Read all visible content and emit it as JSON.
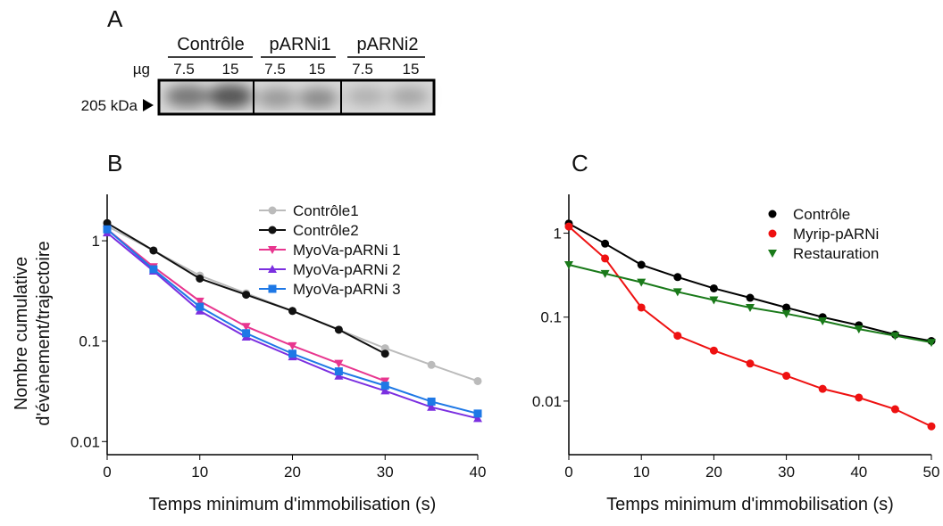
{
  "panel_a": {
    "label": "A",
    "groups": [
      "Contrôle",
      "pARNi1",
      "pARNi2"
    ],
    "unit": "µg",
    "doses": [
      7.5,
      15,
      7.5,
      15,
      7.5,
      15
    ],
    "marker": "205 kDa"
  },
  "chart_data": [
    {
      "type": "line",
      "label": "B",
      "xlabel": "Temps minimum d'immobilisation (s)",
      "ylabel": [
        "Nombre cumulative",
        "d'évènement/trajectoire"
      ],
      "x": [
        0,
        5,
        10,
        15,
        20,
        25,
        30,
        35,
        40
      ],
      "xlim": [
        0,
        40
      ],
      "xticks": [
        0,
        10,
        20,
        30,
        40
      ],
      "ylim": [
        0.0074,
        2.9
      ],
      "yticks": [
        0.01,
        0.1,
        1
      ],
      "log_y": true,
      "legend": "upper right",
      "series": [
        {
          "name": "Contrôle1",
          "color": "#bbbbbb",
          "marker": "circle",
          "values": [
            1.4,
            0.8,
            0.45,
            0.3,
            0.2,
            0.13,
            0.085,
            0.058,
            0.04
          ]
        },
        {
          "name": "Contrôle2",
          "color": "#111111",
          "marker": "circle",
          "values": [
            1.5,
            0.8,
            0.42,
            0.29,
            0.2,
            0.13,
            0.075,
            null,
            null
          ]
        },
        {
          "name": "MyoVa-pARNi 1",
          "color": "#e8368f",
          "marker": "triangle-down",
          "values": [
            1.3,
            0.55,
            0.25,
            0.14,
            0.09,
            0.06,
            0.04,
            null,
            null
          ]
        },
        {
          "name": "MyoVa-pARNi 2",
          "color": "#7b2fe0",
          "marker": "triangle-up",
          "values": [
            1.2,
            0.5,
            0.2,
            0.11,
            0.07,
            0.045,
            0.032,
            0.022,
            0.017
          ]
        },
        {
          "name": "MyoVa-pARNi 3",
          "color": "#1e78e6",
          "marker": "square",
          "values": [
            1.3,
            0.52,
            0.22,
            0.12,
            0.075,
            0.05,
            0.036,
            0.025,
            0.019
          ]
        }
      ]
    },
    {
      "type": "line",
      "label": "C",
      "xlabel": "Temps minimum d'immobilisation (s)",
      "x": [
        0,
        5,
        10,
        15,
        20,
        25,
        30,
        35,
        40,
        45,
        50
      ],
      "xlim": [
        0,
        50
      ],
      "xticks": [
        0,
        10,
        20,
        30,
        40,
        50
      ],
      "ylim": [
        0.0023,
        2.9
      ],
      "yticks": [
        0.01,
        0.1,
        1
      ],
      "log_y": true,
      "legend": "upper right",
      "series": [
        {
          "name": "Contrôle",
          "color": "#000000",
          "marker": "circle",
          "values": [
            1.3,
            0.75,
            0.42,
            0.3,
            0.22,
            0.17,
            0.13,
            0.1,
            0.08,
            0.062,
            0.052
          ]
        },
        {
          "name": "Myrip-pARNi",
          "color": "#ee1111",
          "marker": "circle",
          "values": [
            1.2,
            0.5,
            0.13,
            0.06,
            0.04,
            0.028,
            0.02,
            0.014,
            0.011,
            0.008,
            0.005
          ]
        },
        {
          "name": "Restauration",
          "color": "#1a7a1a",
          "marker": "triangle-down",
          "values": [
            0.42,
            0.33,
            0.26,
            0.2,
            0.16,
            0.13,
            0.11,
            0.09,
            0.072,
            0.06,
            0.05
          ]
        }
      ]
    }
  ]
}
